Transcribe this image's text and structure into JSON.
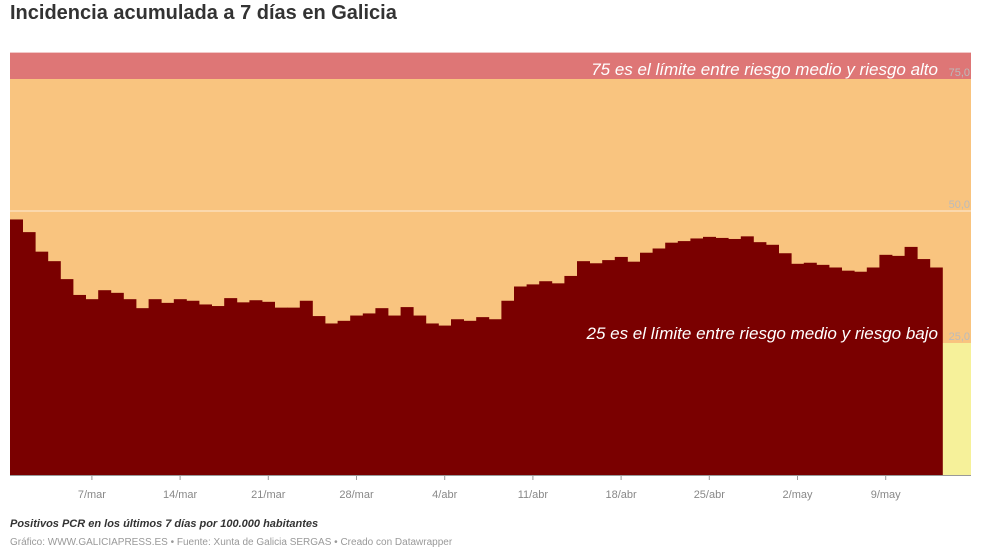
{
  "title": "Incidencia acumulada a 7 días en Galicia",
  "note": "Positivos PCR en los últimos 7 días por 100.000 habitantes",
  "credit": "Gráfico: WWW.GALICIAPRESS.ES • Fuente: Xunta de Galicia SERGAS • Creado con Datawrapper",
  "chart_data": {
    "type": "bar",
    "title": "Incidencia acumulada a 7 días en Galicia",
    "ylabel": "",
    "xlabel": "",
    "ylim": [
      0,
      80
    ],
    "grid": true,
    "x_start": "1/mar",
    "x_end": "13/may",
    "x_ticks": [
      "7/mar",
      "14/mar",
      "21/mar",
      "28/mar",
      "4/abr",
      "11/abr",
      "18/abr",
      "25/abr",
      "2/may",
      "9/may"
    ],
    "y_ticks": [
      "25,0",
      "50,0",
      "75,0"
    ],
    "bands": [
      {
        "from": 0,
        "to": 25,
        "color": "#f6f19a"
      },
      {
        "from": 25,
        "to": 75,
        "color": "#f9c47f"
      },
      {
        "from": 75,
        "to": 80,
        "color": "#de7676"
      }
    ],
    "annotations": [
      {
        "text": "75 es el límite entre riesgo medio y riesgo alto",
        "y": 75
      },
      {
        "text": "25 es el límite entre riesgo medio y riesgo bajo",
        "y": 25
      }
    ],
    "bar_color": "#7a0000",
    "values": [
      48.4,
      46.0,
      42.3,
      40.5,
      37.1,
      34.1,
      33.3,
      35.0,
      34.5,
      33.3,
      31.6,
      33.3,
      32.6,
      33.3,
      33.0,
      32.3,
      32.0,
      33.5,
      32.7,
      33.1,
      32.8,
      31.7,
      31.7,
      33.0,
      30.1,
      28.7,
      29.2,
      30.2,
      30.6,
      31.6,
      30.2,
      31.8,
      30.2,
      28.7,
      28.3,
      29.5,
      29.2,
      29.9,
      29.5,
      33.0,
      35.7,
      36.1,
      36.7,
      36.3,
      37.7,
      40.5,
      40.1,
      40.7,
      41.3,
      40.4,
      42.1,
      42.9,
      44.0,
      44.3,
      44.8,
      45.1,
      44.9,
      44.7,
      45.2,
      44.1,
      43.6,
      42.0,
      40.0,
      40.2,
      39.8,
      39.3,
      38.7,
      38.5,
      39.3,
      41.7,
      41.5,
      43.2,
      40.9,
      39.3
    ]
  }
}
